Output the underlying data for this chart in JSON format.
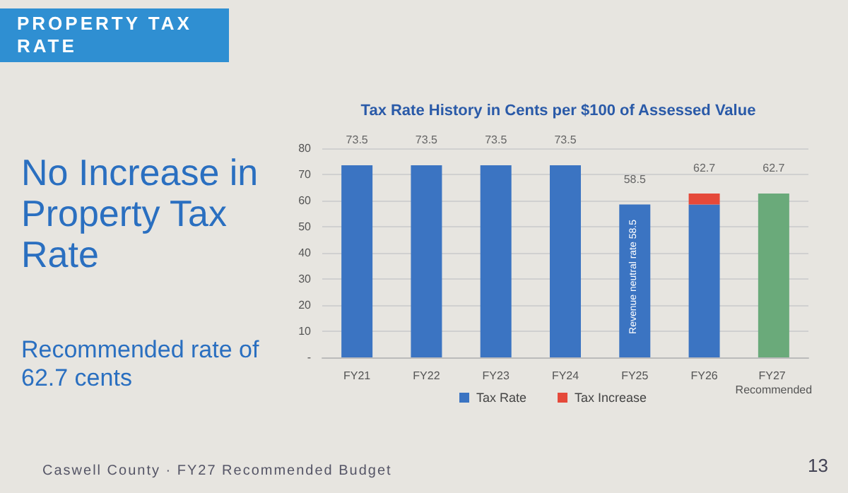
{
  "chart_data": {
    "type": "bar",
    "title": "Tax Rate History in Cents per $100 of Assessed Value",
    "categories": [
      "FY21",
      "FY22",
      "FY23",
      "FY24",
      "FY25",
      "FY26",
      "FY27 Recommended"
    ],
    "stacked": true,
    "series": [
      {
        "name": "Tax Rate",
        "color": "#3b74c2",
        "colors": [
          "#3b74c2",
          "#3b74c2",
          "#3b74c2",
          "#3b74c2",
          "#3b74c2",
          "#3b74c2",
          "#6aaa7a"
        ],
        "values": [
          73.5,
          73.5,
          73.5,
          73.5,
          58.5,
          58.5,
          62.7
        ]
      },
      {
        "name": "Tax Increase",
        "color": "#e5493a",
        "values": [
          null,
          null,
          null,
          null,
          null,
          4.2,
          null
        ]
      }
    ],
    "totals": [
      "73.5",
      "73.5",
      "73.5",
      "73.5",
      "58.5",
      "62.7",
      "62.7"
    ],
    "ylim": [
      0,
      80
    ],
    "yticks": [
      {
        "value": 0,
        "label": "-"
      },
      10,
      20,
      30,
      40,
      50,
      60,
      70,
      80
    ],
    "grid": "y",
    "legend": "bottom",
    "annotations": [
      "PROPERTY TAX RATE",
      "No Increase in Property Tax Rate",
      "Recommended rate of 62.7 cents",
      "Caswell County · FY27 Recommended Budget",
      "13",
      "Revenue neutral rate 58.5"
    ]
  }
}
